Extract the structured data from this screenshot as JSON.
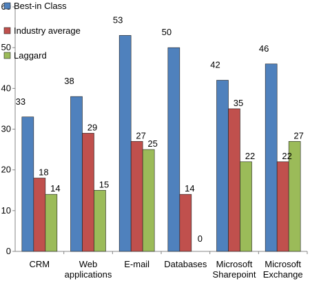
{
  "chart_data": {
    "type": "bar",
    "categories": [
      [
        "CRM"
      ],
      [
        "Web",
        "applications"
      ],
      [
        "E-mail"
      ],
      [
        "Databases"
      ],
      [
        "Microsoft",
        "Sharepoint"
      ],
      [
        "Microsoft",
        "Exchange"
      ]
    ],
    "series": [
      {
        "name": "Best-in Class",
        "values": [
          33,
          38,
          53,
          50,
          42,
          46
        ],
        "color": "#4f81bd"
      },
      {
        "name": "Industry average",
        "values": [
          18,
          29,
          27,
          14,
          35,
          22
        ],
        "color": "#c0504d"
      },
      {
        "name": "Laggard",
        "values": [
          14,
          15,
          25,
          0,
          22,
          27
        ],
        "color": "#9bbb59"
      }
    ],
    "ylim": [
      0,
      60
    ],
    "yticks": [
      0,
      10,
      20,
      30,
      40,
      50,
      60
    ],
    "grid": false,
    "legend_position": "top-left"
  }
}
